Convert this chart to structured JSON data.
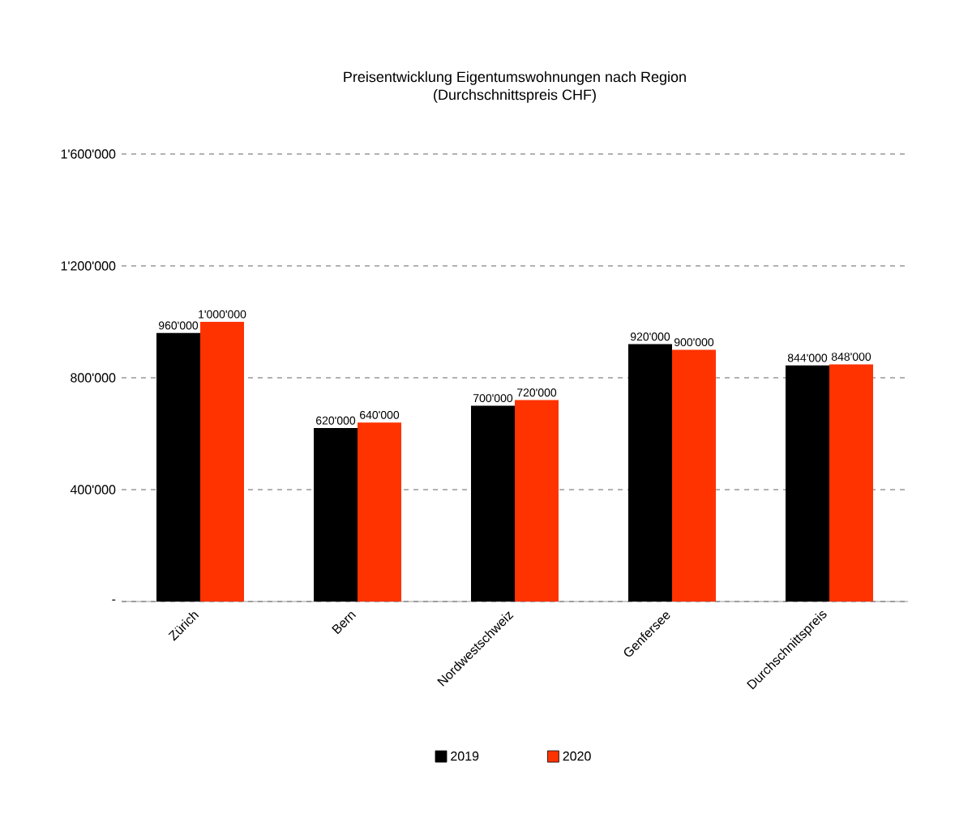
{
  "chart_data": {
    "type": "bar",
    "title": "Preisentwicklung Eigentumswohnungen nach Region",
    "subtitle": "(Durchschnittspreis CHF)",
    "categories": [
      "Zürich",
      "Bern",
      "Nordwestschweiz",
      "Genfersee",
      "Durchschnittspreis"
    ],
    "series": [
      {
        "name": "2019",
        "color": "#000000",
        "values": [
          960000,
          620000,
          700000,
          920000,
          844000
        ],
        "value_labels": [
          "960'000",
          "620'000",
          "700'000",
          "920'000",
          "844'000"
        ]
      },
      {
        "name": "2020",
        "color": "#ff3300",
        "values": [
          1000000,
          640000,
          720000,
          900000,
          848000
        ],
        "value_labels": [
          "1'000'000",
          "640'000",
          "720'000",
          "900'000",
          "848'000"
        ]
      }
    ],
    "ylim": [
      0,
      1600000
    ],
    "yticks": [
      {
        "value": 0,
        "label": "-"
      },
      {
        "value": 400000,
        "label": "400'000"
      },
      {
        "value": 800000,
        "label": "800'000"
      },
      {
        "value": 1200000,
        "label": "1'200'000"
      },
      {
        "value": 1600000,
        "label": "1'600'000"
      }
    ],
    "grid": "y",
    "legend": "bottom"
  }
}
